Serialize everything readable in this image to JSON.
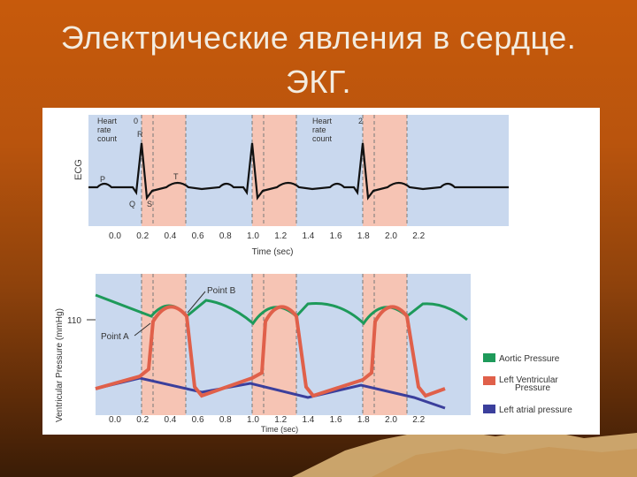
{
  "slide": {
    "title_line1": "Электрические явления в сердце.",
    "title_line2": "ЭКГ."
  },
  "ecg_panel": {
    "ylabel": "ECG",
    "labels": {
      "heart_rate_0_text": "Heart\nrate\ncount",
      "heart_rate_0_num": "0",
      "heart_rate_2_text": "Heart\nrate\ncount",
      "heart_rate_2_num": "2",
      "P": "P",
      "Q": "Q",
      "R": "R",
      "S": "S",
      "T": "T"
    },
    "xticks": [
      "0.0",
      "0.2",
      "0.4",
      "0.6",
      "0.8",
      "1.0",
      "1.2",
      "1.4",
      "1.6",
      "1.8",
      "2.0",
      "2.2"
    ],
    "xlabel": "Time (sec)"
  },
  "pressure_panel": {
    "ylabel": "Ventricular Pressure (mmHg)",
    "ytick": "110",
    "point_a": "Point A",
    "point_b": "Point B",
    "xticks": [
      "0.0",
      "0.2",
      "0.4",
      "0.6",
      "0.8",
      "1.0",
      "1.2",
      "1.4",
      "1.6",
      "1.8",
      "2.0",
      "2.2"
    ],
    "xlabel": "Time (sec)"
  },
  "legend": [
    {
      "label": "Aortic Pressure",
      "color": "#1e9a5a"
    },
    {
      "label": "Left Ventricular\nPressure",
      "color": "#e0604a"
    },
    {
      "label": "Left atrial pressure",
      "color": "#3b3f9c"
    }
  ],
  "colors": {
    "phase_blue": "#c9d8ee",
    "phase_pink": "#f6c4b4",
    "ecg_trace": "#111111"
  }
}
